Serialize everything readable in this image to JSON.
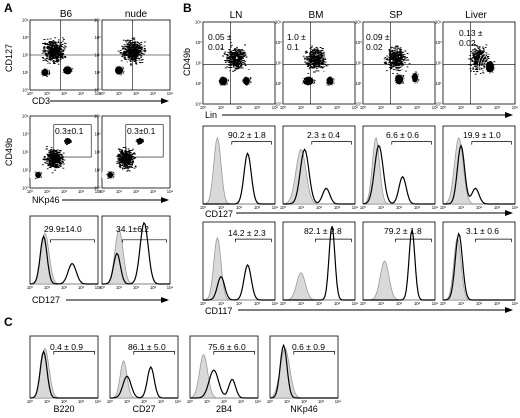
{
  "figure": {
    "panel_labels": {
      "a": "A",
      "b": "B",
      "c": "C"
    },
    "panelA": {
      "columns": [
        "B6",
        "nude"
      ],
      "row1": {
        "ylabel": "CD127",
        "xlabel": "CD3"
      },
      "row2": {
        "ylabel": "CD49b",
        "xlabel": "NKp46",
        "values": [
          "0.3±0.1",
          "0.3±0.1"
        ]
      },
      "row3": {
        "xlabel": "CD127",
        "values": [
          "29.9±14.0",
          "34.1±6.2"
        ]
      }
    },
    "panelB": {
      "columns": [
        "LN",
        "BM",
        "SP",
        "Liver"
      ],
      "row1": {
        "ylabel": "CD49b",
        "xlabel": "Lin",
        "values": [
          {
            "line1": "0.05 ±",
            "line2": "0.01"
          },
          {
            "line1": "1.0 ±",
            "line2": "0.1"
          },
          {
            "line1": "0.09 ±",
            "line2": "0.02"
          },
          {
            "line1": "0.13 ±",
            "line2": "0.02"
          }
        ]
      },
      "row2": {
        "xlabel": "CD127",
        "values": [
          "90.2 ± 1.8",
          "2.3 ± 0.4",
          "6.6 ± 0.6",
          "19.9 ± 1.0"
        ]
      },
      "row3": {
        "xlabel": "CD117",
        "values": [
          "14.2 ± 2.3",
          "82.1 ± 2.8",
          "79.2 ± 1.8",
          "3.1 ± 0.6"
        ]
      }
    },
    "panelC": {
      "markers": [
        "B220",
        "CD27",
        "2B4",
        "NKp46"
      ],
      "values": [
        "0.4 ± 0.9",
        "86.1 ± 5.0",
        "75.6 ± 6.0",
        "0.6 ± 0.9"
      ]
    },
    "tick_labels": [
      "10⁰",
      "10¹",
      "10²",
      "10³",
      "10⁴"
    ]
  }
}
